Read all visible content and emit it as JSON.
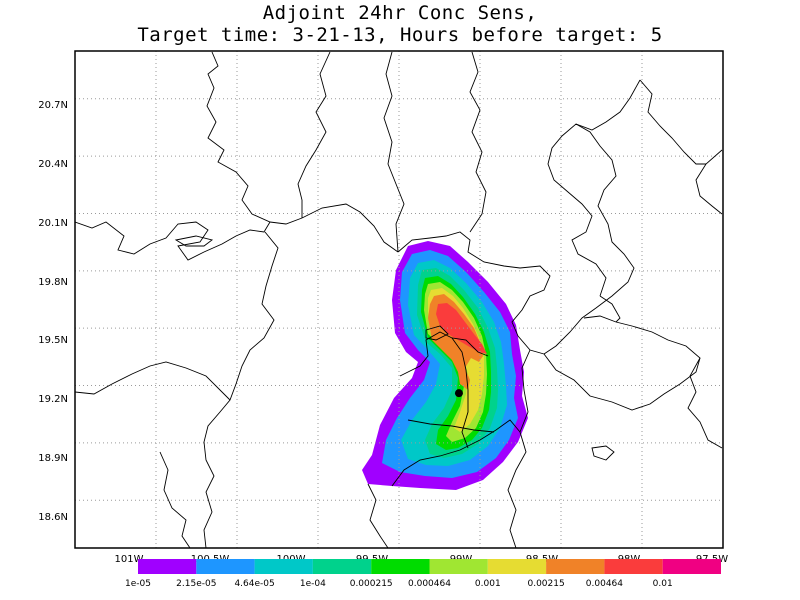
{
  "title": {
    "line1": "Adjoint 24hr Conc Sens,",
    "line2": "Target time: 3-21-13, Hours before target: 5"
  },
  "map": {
    "lon_range": [
      -101.5,
      -97.5
    ],
    "lat_range": [
      18.35,
      20.95
    ],
    "lon_ticks": [
      "101W",
      "100.5W",
      "100W",
      "99.5W",
      "99W",
      "98.5W",
      "98W",
      "97.5W"
    ],
    "lon_tick_values": [
      -101.0,
      -100.5,
      -100.0,
      -99.5,
      -99.0,
      -98.5,
      -98.0,
      -97.5
    ],
    "lat_ticks": [
      "18.6N",
      "18.9N",
      "19.2N",
      "19.5N",
      "19.8N",
      "20.1N",
      "20.4N",
      "20.7N"
    ],
    "lat_tick_values": [
      18.6,
      18.9,
      19.2,
      19.5,
      19.8,
      20.1,
      20.4,
      20.7
    ],
    "grid": true,
    "target_marker": {
      "lon": -99.13,
      "lat": 19.16
    }
  },
  "colorbar": {
    "colors": [
      "#a000ff",
      "#1e96ff",
      "#00c8c8",
      "#00d28c",
      "#00dc00",
      "#a0e632",
      "#e6dc32",
      "#f08228",
      "#fa3c3c",
      "#f00082"
    ],
    "labels": [
      "1e-05",
      "2.15e-05",
      "4.64e-05",
      "1e-04",
      "0.000215",
      "0.000464",
      "0.001",
      "0.00215",
      "0.00464",
      "0.01"
    ]
  }
}
